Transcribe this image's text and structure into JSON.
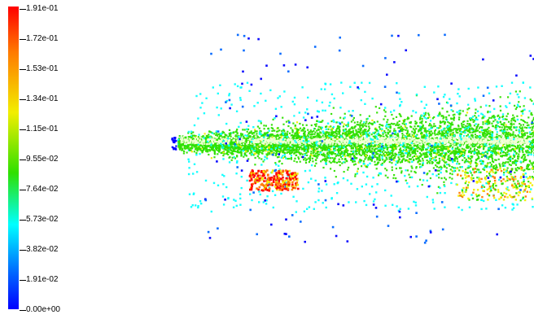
{
  "colorbar": {
    "ticks": [
      "1.91e-01",
      "1.72e-01",
      "1.53e-01",
      "1.34e-01",
      "1.15e-01",
      "9.55e-02",
      "7.64e-02",
      "5.73e-02",
      "3.82e-02",
      "1.91e-02",
      "0.00e+00"
    ],
    "colors": {
      "max": "#ff0000",
      "high": "#ff7a00",
      "mid_high": "#f2ee00",
      "mid": "#2fe000",
      "mid_low": "#00ffff",
      "low": "#0066ff",
      "min": "#0000ff"
    }
  }
}
